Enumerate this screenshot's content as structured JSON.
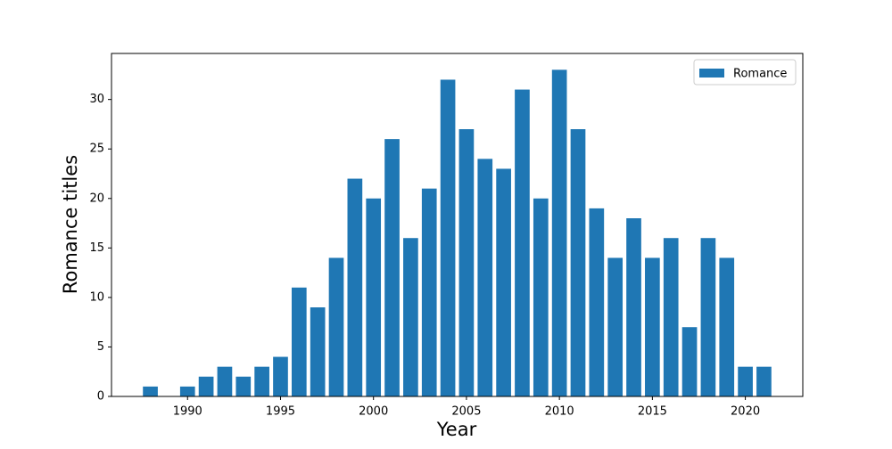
{
  "chart_data": {
    "type": "bar",
    "x_label": "Year",
    "y_label": "Romance titles",
    "x": [
      1988,
      1990,
      1991,
      1992,
      1993,
      1994,
      1995,
      1996,
      1997,
      1998,
      1999,
      2000,
      2001,
      2002,
      2003,
      2004,
      2005,
      2006,
      2007,
      2008,
      2009,
      2010,
      2011,
      2012,
      2013,
      2014,
      2015,
      2016,
      2017,
      2018,
      2019,
      2020,
      2021
    ],
    "series": [
      {
        "name": "Romance",
        "color": "#1f77b4",
        "values": [
          1,
          1,
          2,
          3,
          2,
          3,
          4,
          11,
          9,
          14,
          22,
          20,
          26,
          16,
          21,
          32,
          27,
          24,
          23,
          31,
          20,
          33,
          27,
          19,
          14,
          18,
          14,
          16,
          7,
          16,
          14,
          3,
          3
        ]
      }
    ],
    "bar_width": 0.8,
    "xlim": [
      1985.91,
      2023.09
    ],
    "xticks": [
      1990,
      1995,
      2000,
      2005,
      2010,
      2015,
      2020
    ],
    "ylim": [
      0,
      34.65
    ],
    "yticks": [
      0,
      5,
      10,
      15,
      20,
      25,
      30
    ],
    "legend": "upper-right"
  }
}
